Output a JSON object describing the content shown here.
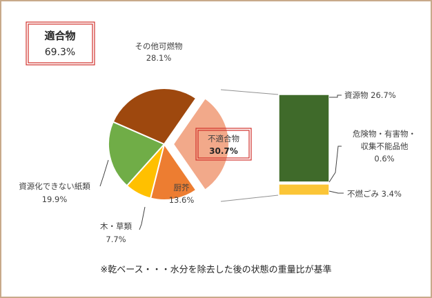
{
  "chart_data": {
    "type": "pie",
    "title": "",
    "footnote": "※乾ベース・・・水分を除去した後の状態の重量比が基準",
    "highlight_box": {
      "label": "適合物",
      "value": "69.3%"
    },
    "slices": [
      {
        "name": "不適合物",
        "value_label": "30.7%",
        "value": 30.7,
        "color": "#f2a98a",
        "exploded": true
      },
      {
        "name": "厨芥",
        "value_label": "13.6%",
        "value": 13.6,
        "color": "#ed7d31"
      },
      {
        "name": "木・草類",
        "value_label": "7.7%",
        "value": 7.7,
        "color": "#ffc000"
      },
      {
        "name": "資源化できない紙類",
        "value_label": "19.9%",
        "value": 19.9,
        "color": "#70ad47"
      },
      {
        "name": "その他可燃物",
        "value_label": "28.1%",
        "value": 28.1,
        "color": "#9e480e"
      }
    ],
    "breakdown": {
      "of": "不適合物",
      "type": "stacked-bar",
      "segments": [
        {
          "name": "資源物",
          "value_label": "26.7%",
          "value": 26.7,
          "color": "#3f6a2a"
        },
        {
          "name": "危険物・有害物・収集不能品他",
          "value_label": "0.6%",
          "value": 0.6,
          "color": "#ffffff"
        },
        {
          "name": "不燃ごみ",
          "value_label": "3.4%",
          "value": 3.4,
          "color": "#fbc537"
        }
      ]
    }
  },
  "labels": {
    "other_burnable": {
      "name": "その他可燃物",
      "value": "28.1%"
    },
    "paper": {
      "name": "資源化できない紙類",
      "value": "19.9%"
    },
    "wood": {
      "name": "木・草類",
      "value": "7.7%"
    },
    "kitchen": {
      "name": "厨芥",
      "value": "13.6%"
    },
    "nonconforming": {
      "name": "不適合物",
      "value": "30.7%"
    },
    "resources": "資源物 26.7%",
    "hazardous_line1": "危険物・有害物・",
    "hazardous_line2": "収集不能品他",
    "hazardous_value": "0.6%",
    "noncombustible": "不燃ごみ 3.4%"
  }
}
